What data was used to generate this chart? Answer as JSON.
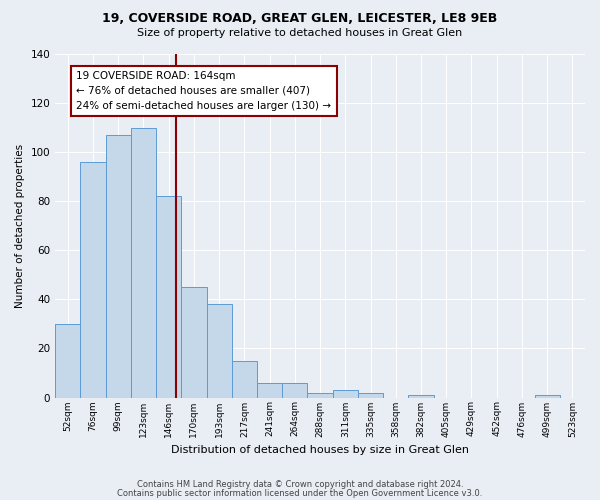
{
  "title1": "19, COVERSIDE ROAD, GREAT GLEN, LEICESTER, LE8 9EB",
  "title2": "Size of property relative to detached houses in Great Glen",
  "xlabel": "Distribution of detached houses by size in Great Glen",
  "ylabel": "Number of detached properties",
  "bin_labels": [
    "52sqm",
    "76sqm",
    "99sqm",
    "123sqm",
    "146sqm",
    "170sqm",
    "193sqm",
    "217sqm",
    "241sqm",
    "264sqm",
    "288sqm",
    "311sqm",
    "335sqm",
    "358sqm",
    "382sqm",
    "405sqm",
    "429sqm",
    "452sqm",
    "476sqm",
    "499sqm",
    "523sqm"
  ],
  "bar_heights": [
    30,
    96,
    107,
    110,
    82,
    45,
    38,
    15,
    6,
    6,
    2,
    3,
    2,
    0,
    1,
    0,
    0,
    0,
    0,
    1,
    0
  ],
  "bar_color": "#c5d8ea",
  "bar_edge_color": "#5b9bd5",
  "vline_color": "#8b0000",
  "annotation_title": "19 COVERSIDE ROAD: 164sqm",
  "annotation_line1": "← 76% of detached houses are smaller (407)",
  "annotation_line2": "24% of semi-detached houses are larger (130) →",
  "annotation_box_color": "#ffffff",
  "annotation_box_edge": "#8b0000",
  "ylim": [
    0,
    140
  ],
  "yticks": [
    0,
    20,
    40,
    60,
    80,
    100,
    120,
    140
  ],
  "footer1": "Contains HM Land Registry data © Crown copyright and database right 2024.",
  "footer2": "Contains public sector information licensed under the Open Government Licence v3.0.",
  "background_color": "#e8eef4",
  "grid_color": "#ffffff"
}
